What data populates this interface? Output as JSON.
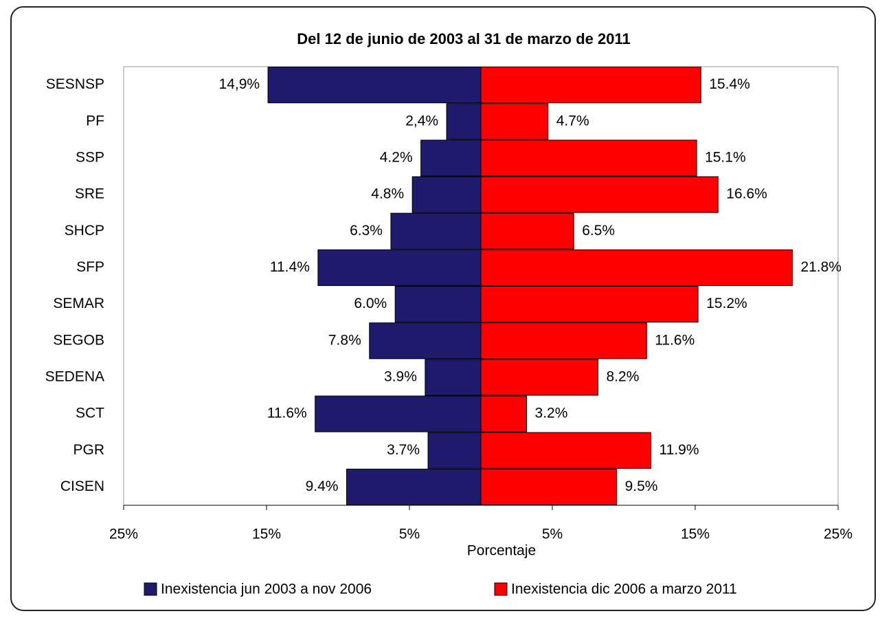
{
  "chart_data": {
    "type": "butterfly-bar",
    "title": "Del 12 de junio de 2003 al 31 de marzo de 2011",
    "x_label": "Porcentaje",
    "categories": [
      "SESNSP",
      "PF",
      "SSP",
      "SRE",
      "SHCP",
      "SFP",
      "SEMAR",
      "SEGOB",
      "SEDENA",
      "SCT",
      "PGR",
      "CISEN"
    ],
    "series": [
      {
        "name": "Inexistencia jun 2003 a nov 2006",
        "color": "#1f1a6b",
        "values": [
          14.9,
          2.4,
          4.2,
          4.8,
          6.3,
          11.4,
          6.0,
          7.8,
          3.9,
          11.6,
          3.7,
          9.4
        ],
        "value_labels": [
          "14,9%",
          "2,4%",
          "4.2%",
          "4.8%",
          "6.3%",
          "11.4%",
          "6.0%",
          "7.8%",
          "3.9%",
          "11.6%",
          "3.7%",
          "9.4%"
        ]
      },
      {
        "name": "Inexistencia dic 2006 a marzo 2011",
        "color": "#ff0000",
        "values": [
          15.4,
          4.7,
          15.1,
          16.6,
          6.5,
          21.8,
          15.2,
          11.6,
          8.2,
          3.2,
          11.9,
          9.5
        ],
        "value_labels": [
          "15.4%",
          "4.7%",
          "15.1%",
          "16.6%",
          "6.5%",
          "21.8%",
          "15.2%",
          "11.6%",
          "8.2%",
          "3.2%",
          "11.9%",
          "9.5%"
        ]
      }
    ],
    "xlim": [
      -25,
      25
    ],
    "xticks": [
      {
        "value": -25,
        "label": "25%"
      },
      {
        "value": -15,
        "label": "15%"
      },
      {
        "value": -5,
        "label": "5%"
      },
      {
        "value": 5,
        "label": "5%"
      },
      {
        "value": 15,
        "label": "15%"
      },
      {
        "value": 25,
        "label": "25%"
      }
    ],
    "legend": "bottom"
  }
}
